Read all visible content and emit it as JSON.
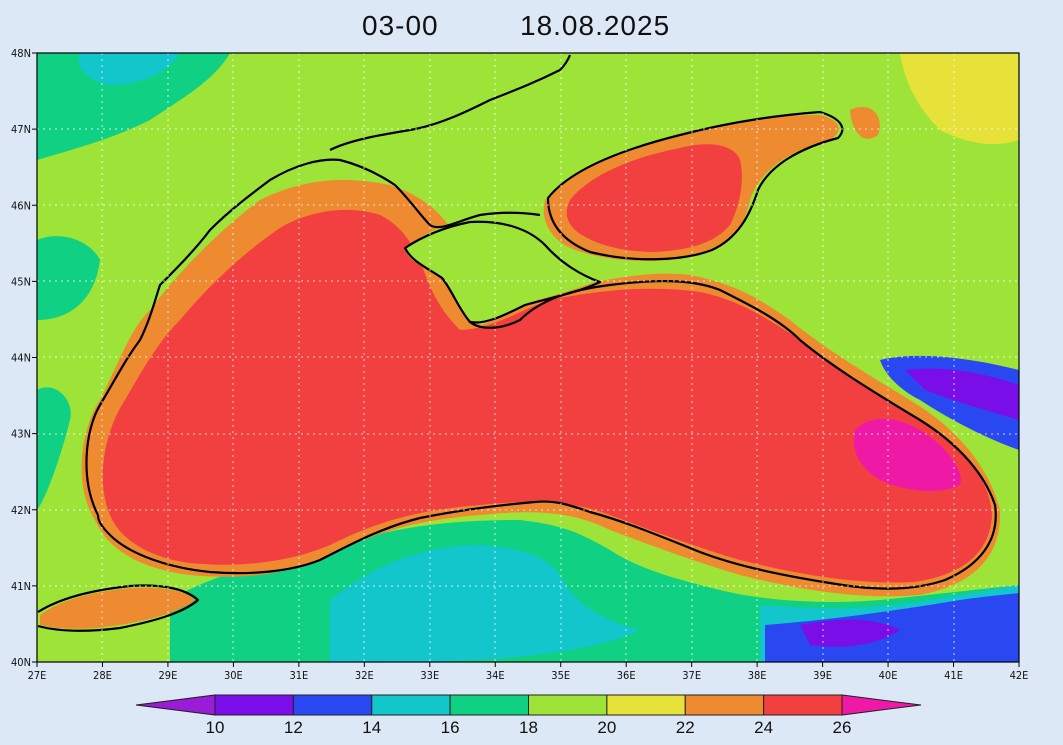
{
  "title": {
    "time": "03-00",
    "date": "18.08.2025"
  },
  "map": {
    "lon_range": [
      27,
      42
    ],
    "lat_range": [
      40,
      48
    ],
    "x_ticks": [
      "27E",
      "28E",
      "29E",
      "30E",
      "31E",
      "32E",
      "33E",
      "34E",
      "35E",
      "36E",
      "37E",
      "38E",
      "39E",
      "40E",
      "41E",
      "42E"
    ],
    "y_ticks": [
      "40N",
      "41N",
      "42N",
      "43N",
      "44N",
      "45N",
      "46N",
      "47N",
      "48N"
    ]
  },
  "colorbar": {
    "levels": [
      10,
      12,
      14,
      16,
      18,
      20,
      22,
      24,
      26
    ],
    "labels": [
      "10",
      "12",
      "14",
      "16",
      "18",
      "20",
      "22",
      "24",
      "26"
    ],
    "colors": [
      "#9a1cd6",
      "#7a0ee8",
      "#2a48f2",
      "#12c6cc",
      "#10d084",
      "#9ee438",
      "#e6e23a",
      "#ee8a30",
      "#f24040",
      "#ee1aa6"
    ]
  }
}
